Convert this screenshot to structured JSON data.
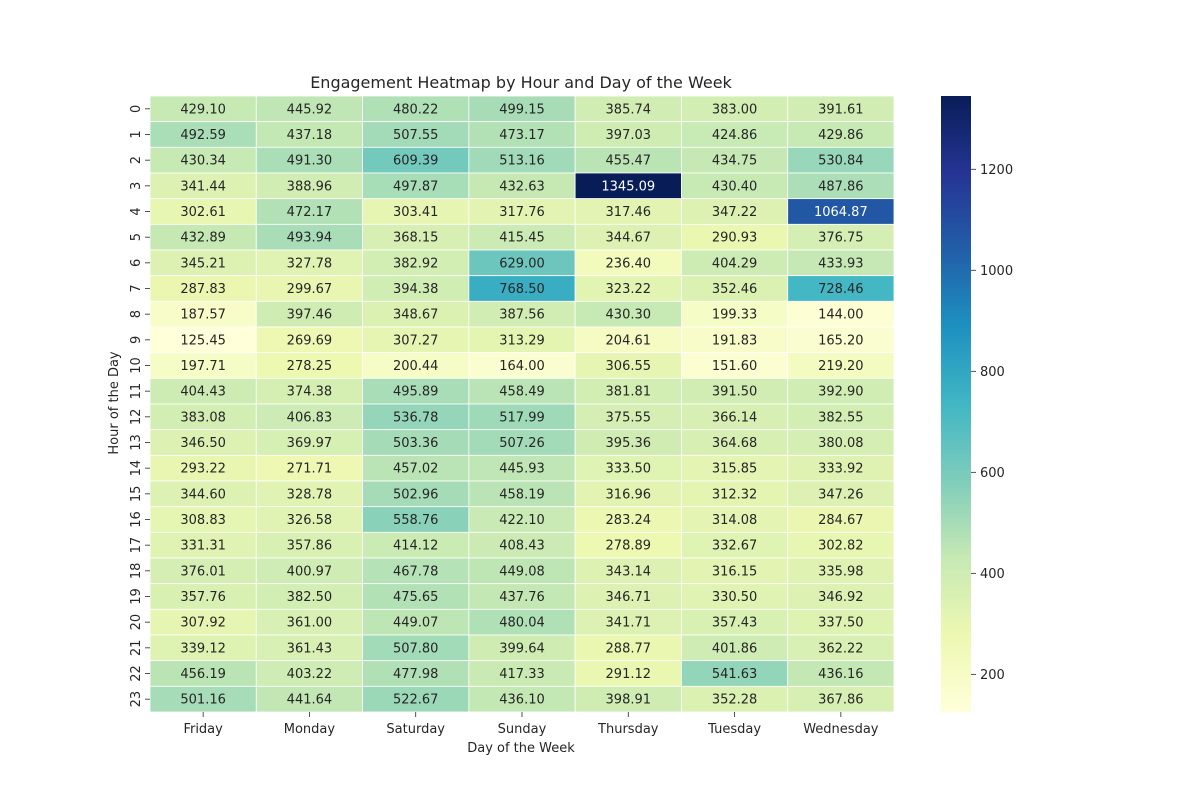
{
  "chart_data": {
    "type": "heatmap",
    "title": "Engagement Heatmap by Hour and Day of the Week",
    "xlabel": "Day of the Week",
    "ylabel": "Hour of the Day",
    "x_categories": [
      "Friday",
      "Monday",
      "Saturday",
      "Sunday",
      "Thursday",
      "Tuesday",
      "Wednesday"
    ],
    "y_categories": [
      "0",
      "1",
      "2",
      "3",
      "4",
      "5",
      "6",
      "7",
      "8",
      "9",
      "10",
      "11",
      "12",
      "13",
      "14",
      "15",
      "16",
      "17",
      "18",
      "19",
      "20",
      "21",
      "22",
      "23"
    ],
    "values": [
      [
        429.1,
        445.92,
        480.22,
        499.15,
        385.74,
        383.0,
        391.61
      ],
      [
        492.59,
        437.18,
        507.55,
        473.17,
        397.03,
        424.86,
        429.86
      ],
      [
        430.34,
        491.3,
        609.39,
        513.16,
        455.47,
        434.75,
        530.84
      ],
      [
        341.44,
        388.96,
        497.87,
        432.63,
        1345.09,
        430.4,
        487.86
      ],
      [
        302.61,
        472.17,
        303.41,
        317.76,
        317.46,
        347.22,
        1064.87
      ],
      [
        432.89,
        493.94,
        368.15,
        415.45,
        344.67,
        290.93,
        376.75
      ],
      [
        345.21,
        327.78,
        382.92,
        629.0,
        236.4,
        404.29,
        433.93
      ],
      [
        287.83,
        299.67,
        394.38,
        768.5,
        323.22,
        352.46,
        728.46
      ],
      [
        187.57,
        397.46,
        348.67,
        387.56,
        430.3,
        199.33,
        144.0
      ],
      [
        125.45,
        269.69,
        307.27,
        313.29,
        204.61,
        191.83,
        165.2
      ],
      [
        197.71,
        278.25,
        200.44,
        164.0,
        306.55,
        151.6,
        219.2
      ],
      [
        404.43,
        374.38,
        495.89,
        458.49,
        381.81,
        391.5,
        392.9
      ],
      [
        383.08,
        406.83,
        536.78,
        517.99,
        375.55,
        366.14,
        382.55
      ],
      [
        346.5,
        369.97,
        503.36,
        507.26,
        395.36,
        364.68,
        380.08
      ],
      [
        293.22,
        271.71,
        457.02,
        445.93,
        333.5,
        315.85,
        333.92
      ],
      [
        344.6,
        328.78,
        502.96,
        458.19,
        316.96,
        312.32,
        347.26
      ],
      [
        308.83,
        326.58,
        558.76,
        422.1,
        283.24,
        314.08,
        284.67
      ],
      [
        331.31,
        357.86,
        414.12,
        408.43,
        278.89,
        332.67,
        302.82
      ],
      [
        376.01,
        400.97,
        467.78,
        449.08,
        343.14,
        316.15,
        335.98
      ],
      [
        357.76,
        382.5,
        475.65,
        437.76,
        346.71,
        330.5,
        346.92
      ],
      [
        307.92,
        361.0,
        449.07,
        480.04,
        341.71,
        357.43,
        337.5
      ],
      [
        339.12,
        361.43,
        507.8,
        399.64,
        288.77,
        401.86,
        362.22
      ],
      [
        456.19,
        403.22,
        477.98,
        417.33,
        291.12,
        541.63,
        436.16
      ],
      [
        501.16,
        441.64,
        522.67,
        436.1,
        398.91,
        352.28,
        367.86
      ]
    ],
    "value_range": [
      125.45,
      1345.09
    ],
    "colormap": "YlGnBu",
    "colormap_stops": [
      "#ffffd9",
      "#edf8b1",
      "#c7e9b4",
      "#7fcdbb",
      "#41b6c4",
      "#1d91c0",
      "#225ea8",
      "#253494",
      "#081d58"
    ],
    "colorbar_ticks": [
      200,
      400,
      600,
      800,
      1000,
      1200
    ],
    "annotation_format": "2 decimals",
    "cell_border_color": "#ffffff",
    "grid": false,
    "legend": "colorbar right"
  }
}
